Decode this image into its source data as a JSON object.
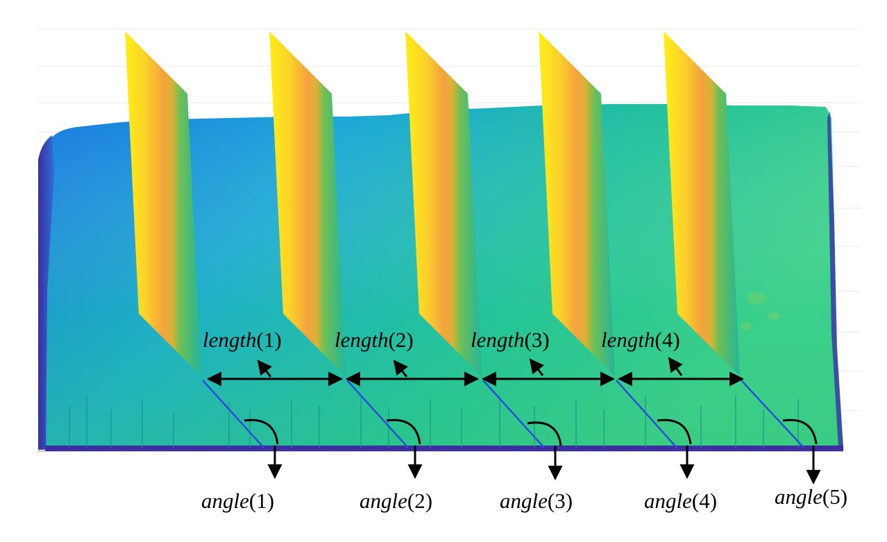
{
  "figure": {
    "description_type": "surface-slicing-diagram",
    "length_labels": [
      {
        "name": "length",
        "index": "(1)"
      },
      {
        "name": "length",
        "index": "(2)"
      },
      {
        "name": "length",
        "index": "(3)"
      },
      {
        "name": "length",
        "index": "(4)"
      }
    ],
    "angle_labels": [
      {
        "name": "angle",
        "index": "(1)"
      },
      {
        "name": "angle",
        "index": "(2)"
      },
      {
        "name": "angle",
        "index": "(3)"
      },
      {
        "name": "angle",
        "index": "(4)"
      },
      {
        "name": "angle",
        "index": "(5)"
      }
    ],
    "colors": {
      "surface_blue": "#1a8fe6",
      "surface_teal": "#1fb7a8",
      "surface_green": "#4fd07a",
      "surface_dark": "#3a2f9e",
      "plane_yellow": "#ffe81a",
      "plane_orange": "#f6a23a",
      "plane_green": "#3cc08a",
      "annotation": "#000000"
    }
  }
}
